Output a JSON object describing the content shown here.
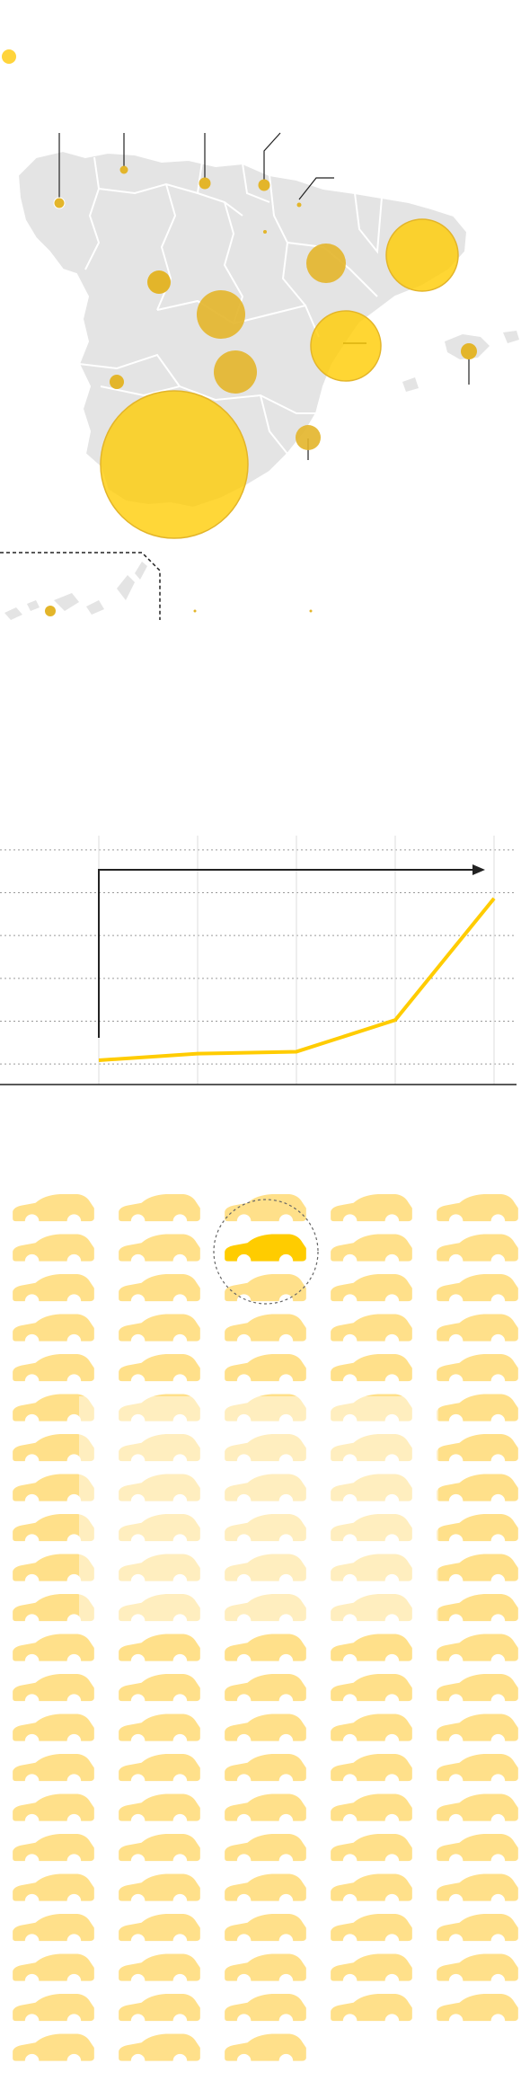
{
  "colors": {
    "accent": "#ffcc00",
    "accent_dark": "#e3b52a",
    "land": "#e4e4e4",
    "border": "#ffffff",
    "line": "#222222",
    "grid": "#9a9a9a",
    "car_fill": "#ffe08a",
    "car_faded": "#fff3cc"
  },
  "map": {
    "legend_icon": "yellow-dot-icon",
    "callouts": 9
  },
  "chart_data": {
    "type": "line",
    "title": "",
    "xlabel": "",
    "ylabel": "",
    "x": [
      1,
      2,
      3,
      4,
      5
    ],
    "series": [
      {
        "values": [
          1.3,
          3.6,
          4.3,
          15.4,
          58.0
        ]
      }
    ],
    "ylim": [
      -5,
      80
    ],
    "grid": true
  },
  "cars": {
    "icon": "car-icon",
    "columns": 5,
    "rows": 22,
    "last_row_count": 3,
    "highlighted_index": 7
  }
}
